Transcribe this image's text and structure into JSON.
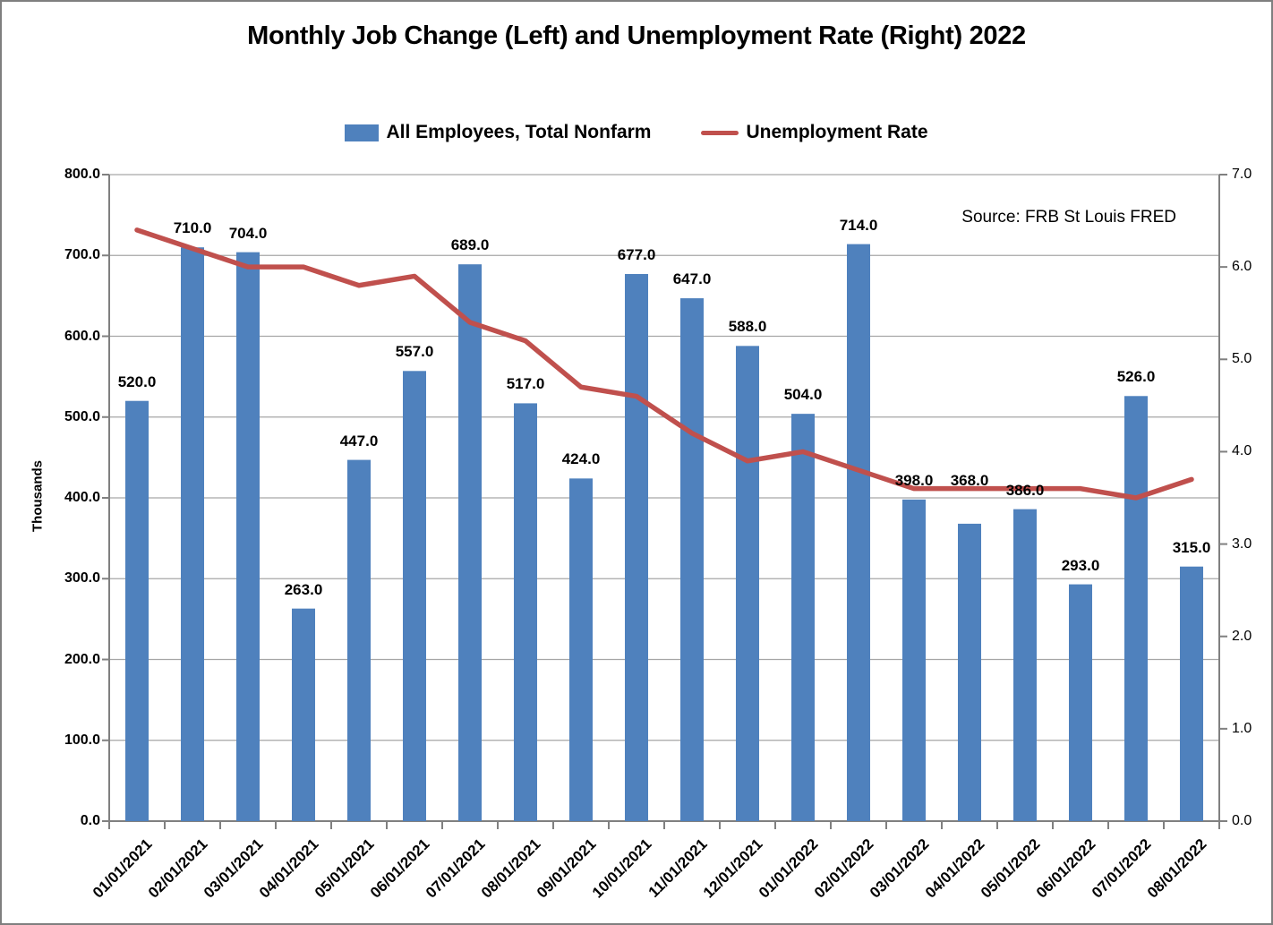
{
  "title": "Monthly Job Change (Left) and Unemployment Rate (Right) 2022",
  "source_note": "Source: FRB St Louis FRED",
  "legend": {
    "items": [
      {
        "label": "All Employees, Total Nonfarm",
        "marker": "bar-swatch"
      },
      {
        "label": "Unemployment Rate",
        "marker": "line-swatch"
      }
    ]
  },
  "colors": {
    "bar": "#4F81BD",
    "line": "#C0504D",
    "gridline": "#A6A6A6",
    "axis": "#808080",
    "text": "#000000"
  },
  "chart_data": {
    "type": "combo-bar-line",
    "categories": [
      "01/01/2021",
      "02/01/2021",
      "03/01/2021",
      "04/01/2021",
      "05/01/2021",
      "06/01/2021",
      "07/01/2021",
      "08/01/2021",
      "09/01/2021",
      "10/01/2021",
      "11/01/2021",
      "12/01/2021",
      "01/01/2022",
      "02/01/2022",
      "03/01/2022",
      "04/01/2022",
      "05/01/2022",
      "06/01/2022",
      "07/01/2022",
      "08/01/2022"
    ],
    "series": [
      {
        "name": "All Employees, Total Nonfarm",
        "type": "bar",
        "axis": "left",
        "values": [
          520.0,
          710.0,
          704.0,
          263.0,
          447.0,
          557.0,
          689.0,
          517.0,
          424.0,
          677.0,
          647.0,
          588.0,
          504.0,
          714.0,
          398.0,
          368.0,
          386.0,
          293.0,
          526.0,
          315.0
        ],
        "data_labels": true
      },
      {
        "name": "Unemployment Rate",
        "type": "line",
        "axis": "right",
        "values": [
          6.4,
          6.2,
          6.0,
          6.0,
          5.8,
          5.9,
          5.4,
          5.2,
          4.7,
          4.6,
          4.2,
          3.9,
          4.0,
          3.8,
          3.6,
          3.6,
          3.6,
          3.6,
          3.5,
          3.7
        ],
        "data_labels": false
      }
    ],
    "left_axis": {
      "title": "Thousands",
      "min": 0,
      "max": 800,
      "step": 100
    },
    "right_axis": {
      "min": 0,
      "max": 7,
      "step": 1
    },
    "grid": true,
    "legend_position": "top",
    "bar_label_dy": {
      "15": -27
    }
  }
}
